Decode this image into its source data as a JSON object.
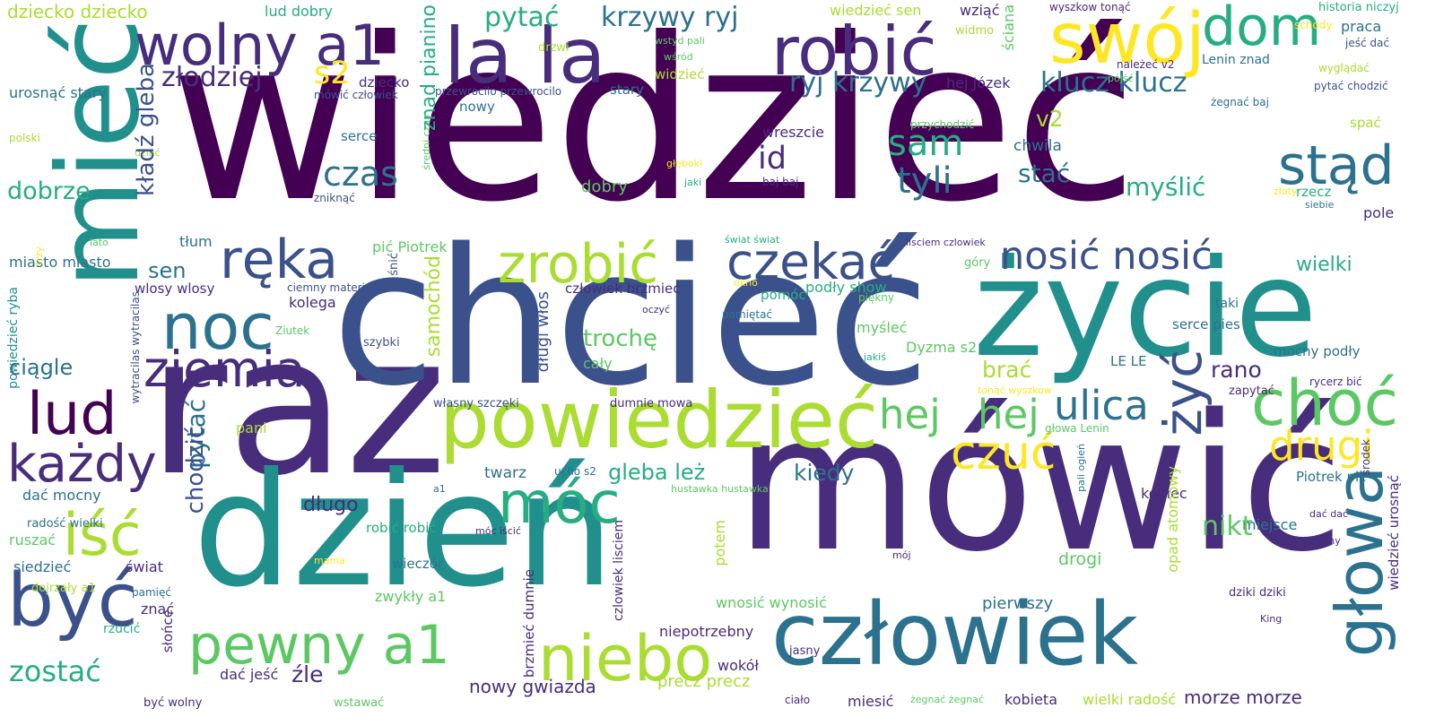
{
  "palette": {
    "background": "#ffffff",
    "viridis": [
      "#440154",
      "#472d7b",
      "#3b518b",
      "#2c718e",
      "#21908d",
      "#27ad81",
      "#5cc863",
      "#aadc32",
      "#fde725"
    ]
  },
  "words": [
    {
      "id": "wiedziec",
      "text": "wiedzieć",
      "color": "#440154"
    },
    {
      "id": "raz",
      "text": "raz",
      "color": "#472d7b"
    },
    {
      "id": "chciec",
      "text": "chcieć",
      "color": "#3b518b"
    },
    {
      "id": "mowic",
      "text": "mówić",
      "color": "#472d7b"
    },
    {
      "id": "dzien",
      "text": "dzień",
      "color": "#21908d"
    },
    {
      "id": "zycie",
      "text": "życie",
      "color": "#21908d"
    },
    {
      "id": "miec",
      "text": "mieć",
      "color": "#21908d"
    },
    {
      "id": "czlowiek",
      "text": "człowiek",
      "color": "#2c718e"
    },
    {
      "id": "powiedziec",
      "text": "powiedzieć",
      "color": "#aadc32"
    },
    {
      "id": "la-la",
      "text": "la la",
      "color": "#472d7b"
    },
    {
      "id": "wolny-a1",
      "text": "wolny a1",
      "color": "#472d7b"
    },
    {
      "id": "robic",
      "text": "robić",
      "color": "#472d7b"
    },
    {
      "id": "swoj",
      "text": "swój",
      "color": "#fde725"
    },
    {
      "id": "dom",
      "text": "dom",
      "color": "#27ad81"
    },
    {
      "id": "stad",
      "text": "stąd",
      "color": "#2c718e"
    },
    {
      "id": "reka",
      "text": "ręka",
      "color": "#3b518b"
    },
    {
      "id": "noc",
      "text": "noc",
      "color": "#2c718e"
    },
    {
      "id": "ziemia",
      "text": "ziemia",
      "color": "#472d7b"
    },
    {
      "id": "zrobic",
      "text": "zrobić",
      "color": "#aadc32"
    },
    {
      "id": "czekac",
      "text": "czekać",
      "color": "#3b518b"
    },
    {
      "id": "nosic-nosic",
      "text": "nosić nosić",
      "color": "#3b518b"
    },
    {
      "id": "byc",
      "text": "być",
      "color": "#3b518b"
    },
    {
      "id": "isc",
      "text": "iść",
      "color": "#aadc32"
    },
    {
      "id": "moc",
      "text": "móc",
      "color": "#27ad81"
    },
    {
      "id": "niebo",
      "text": "niebo",
      "color": "#aadc32"
    },
    {
      "id": "pewny-a1",
      "text": "pewny a1",
      "color": "#5cc863"
    },
    {
      "id": "kazdy",
      "text": "każdy",
      "color": "#472d7b"
    },
    {
      "id": "lud",
      "text": "lud",
      "color": "#440154"
    },
    {
      "id": "glowa",
      "text": "głowa",
      "color": "#2c718e"
    },
    {
      "id": "choc",
      "text": "choć",
      "color": "#5cc863"
    },
    {
      "id": "zyc",
      "text": "żyć",
      "color": "#3b518b"
    },
    {
      "id": "czuc",
      "text": "czuć",
      "color": "#fde725"
    },
    {
      "id": "hej-1",
      "text": "hej",
      "color": "#5cc863"
    },
    {
      "id": "hej-2",
      "text": "hej",
      "color": "#5cc863"
    },
    {
      "id": "ulica",
      "text": "ulica",
      "color": "#2c718e"
    },
    {
      "id": "drugi",
      "text": "drugi",
      "color": "#fde725"
    },
    {
      "id": "sam",
      "text": "sam",
      "color": "#27ad81"
    },
    {
      "id": "tyli",
      "text": "tyli",
      "color": "#2c718e"
    },
    {
      "id": "czas",
      "text": "czas",
      "color": "#2c718e"
    },
    {
      "id": "id",
      "text": "id",
      "color": "#472d7b"
    },
    {
      "id": "s2",
      "text": "s2",
      "color": "#fde725"
    },
    {
      "id": "pytac-top",
      "text": "pytać",
      "color": "#27ad81"
    },
    {
      "id": "krzywy-ryj",
      "text": "krzywy ryj",
      "color": "#2c718e"
    },
    {
      "id": "ryj-krzywy",
      "text": "ryj krzywy",
      "color": "#2c718e"
    },
    {
      "id": "klucz-klucz",
      "text": "klucz klucz",
      "color": "#2c718e"
    },
    {
      "id": "v2",
      "text": "v2",
      "color": "#aadc32"
    },
    {
      "id": "stac",
      "text": "stać",
      "color": "#2c718e"
    },
    {
      "id": "myslic",
      "text": "myślić",
      "color": "#27ad81"
    },
    {
      "id": "zlodziej",
      "text": "złodziej",
      "color": "#472d7b"
    },
    {
      "id": "dziecko-dziecko",
      "text": "dziecko dziecko",
      "color": "#aadc32"
    },
    {
      "id": "wiedziec-sen",
      "text": "wiedzieć sen",
      "color": "#aadc32"
    },
    {
      "id": "wziac",
      "text": "wziąć",
      "color": "#472d7b"
    },
    {
      "id": "sciana",
      "text": "ściana",
      "color": "#5cc863"
    },
    {
      "id": "wyszkow-tonac",
      "text": "wyszkow tonąć",
      "color": "#472d7b"
    },
    {
      "id": "historia-niczyj",
      "text": "historia niczyj",
      "color": "#27ad81"
    },
    {
      "id": "schody",
      "text": "schody",
      "color": "#fde725"
    },
    {
      "id": "praca",
      "text": "praca",
      "color": "#2c718e"
    },
    {
      "id": "jesc-dac",
      "text": "jeść dać",
      "color": "#3b518b"
    },
    {
      "id": "wygladac",
      "text": "wyglądać",
      "color": "#aadc32"
    },
    {
      "id": "pytac-chodzic",
      "text": "pytać chodzić",
      "color": "#3b518b"
    },
    {
      "id": "lenin-znad",
      "text": "Lenin znad",
      "color": "#2c718e"
    },
    {
      "id": "nalezec-v2",
      "text": "należeć v2",
      "color": "#472d7b"
    },
    {
      "id": "pojsc",
      "text": "pójść",
      "color": "#5cc863"
    },
    {
      "id": "zegnac-baj",
      "text": "żegnać baj",
      "color": "#2c718e"
    },
    {
      "id": "spac",
      "text": "spać",
      "color": "#aadc32"
    },
    {
      "id": "lud-dobry",
      "text": "lud dobry",
      "color": "#27ad81"
    },
    {
      "id": "drzwi",
      "text": "drzwi",
      "color": "#aadc32"
    },
    {
      "id": "wstyd-pali",
      "text": "wstyd pali",
      "color": "#5cc863"
    },
    {
      "id": "wsrod",
      "text": "wśród",
      "color": "#5cc863"
    },
    {
      "id": "widmo",
      "text": "widmo",
      "color": "#aadc32"
    },
    {
      "id": "hej-jozek",
      "text": "hej Józek",
      "color": "#472d7b"
    },
    {
      "id": "widziec",
      "text": "widzieć",
      "color": "#aadc32"
    },
    {
      "id": "stary",
      "text": "stary",
      "color": "#2c718e"
    },
    {
      "id": "przewrocilo",
      "text": "przewrocilo przewrocilo",
      "color": "#3b518b"
    },
    {
      "id": "dziecko",
      "text": "dziecko",
      "color": "#472d7b"
    },
    {
      "id": "mowic-czlowiek",
      "text": "mówić człowiek",
      "color": "#3b518b"
    },
    {
      "id": "nowy",
      "text": "nowy",
      "color": "#2c718e"
    },
    {
      "id": "urosnac-stary",
      "text": "urosnąć stary",
      "color": "#2c718e"
    },
    {
      "id": "polski",
      "text": "polski",
      "color": "#aadc32"
    },
    {
      "id": "dziac",
      "text": "dziać",
      "color": "#aadc32"
    },
    {
      "id": "serce",
      "text": "serce",
      "color": "#2c718e"
    },
    {
      "id": "sredni-czas",
      "text": "średni czas",
      "color": "#5cc863"
    },
    {
      "id": "znad-pianino",
      "text": "znad pianino",
      "color": "#27ad81"
    },
    {
      "id": "kladz-gleba",
      "text": "kładź gleba",
      "color": "#3b518b"
    },
    {
      "id": "przychodzic",
      "text": "przychodzić",
      "color": "#5cc863"
    },
    {
      "id": "wreszcie",
      "text": "wreszcie",
      "color": "#472d7b"
    },
    {
      "id": "chwila",
      "text": "chwila",
      "color": "#2c718e"
    },
    {
      "id": "gleboki",
      "text": "głęboki",
      "color": "#fde725"
    },
    {
      "id": "jaki",
      "text": "jaki",
      "color": "#27ad81"
    },
    {
      "id": "baj-baj",
      "text": "baj baj",
      "color": "#472d7b"
    },
    {
      "id": "zloty",
      "text": "złoty",
      "color": "#fde725"
    },
    {
      "id": "rzecz",
      "text": "rzecz",
      "color": "#27ad81"
    },
    {
      "id": "siebie",
      "text": "siebie",
      "color": "#2c718e"
    },
    {
      "id": "pole",
      "text": "pole",
      "color": "#472d7b"
    },
    {
      "id": "dobrze",
      "text": "dobrze",
      "color": "#27ad81"
    },
    {
      "id": "zniknac",
      "text": "zniknąć",
      "color": "#3b518b"
    },
    {
      "id": "dobry",
      "text": "dobry",
      "color": "#5cc863"
    },
    {
      "id": "lato",
      "text": "lato",
      "color": "#5cc863"
    },
    {
      "id": "tlum",
      "text": "tłum",
      "color": "#2c718e"
    },
    {
      "id": "swiat-swiat",
      "text": "świat świat",
      "color": "#27ad81"
    },
    {
      "id": "lisciem-czlowiek",
      "text": "lisciem czlowiek",
      "color": "#472d7b"
    },
    {
      "id": "gory",
      "text": "góry",
      "color": "#5cc863"
    },
    {
      "id": "miasto-miasto",
      "text": "miasto miasto",
      "color": "#2c718e"
    },
    {
      "id": "sen",
      "text": "sen",
      "color": "#2c718e"
    },
    {
      "id": "snic",
      "text": "śnić",
      "color": "#3b518b"
    },
    {
      "id": "pic-piotrek",
      "text": "pić Piotrek",
      "color": "#5cc863"
    },
    {
      "id": "wielki",
      "text": "wielki",
      "color": "#27ad81"
    },
    {
      "id": "trzy",
      "text": "trzy",
      "color": "#fde725"
    },
    {
      "id": "wlosy-wlosy",
      "text": "wlosy wlosy",
      "color": "#472d7b"
    },
    {
      "id": "ciemny-materia",
      "text": "ciemny materia",
      "color": "#3b518b"
    },
    {
      "id": "samochod",
      "text": "samochód",
      "color": "#aadc32"
    },
    {
      "id": "czlowiek-brzmiec",
      "text": "człowiek brzmieć",
      "color": "#472d7b"
    },
    {
      "id": "okno",
      "text": "okno",
      "color": "#fde725"
    },
    {
      "id": "pomoc",
      "text": "pomóc",
      "color": "#27ad81"
    },
    {
      "id": "podly-show",
      "text": "podły show",
      "color": "#27ad81"
    },
    {
      "id": "piekny",
      "text": "piękny",
      "color": "#5cc863"
    },
    {
      "id": "powiedziec-ryba",
      "text": "powiedzieć ryba",
      "color": "#21908d"
    },
    {
      "id": "wytracilas",
      "text": "wytracilas wytracilas",
      "color": "#3b518b"
    },
    {
      "id": "kolega",
      "text": "kolega",
      "color": "#472d7b"
    },
    {
      "id": "oczyc",
      "text": "oczyć",
      "color": "#472d7b"
    },
    {
      "id": "pamietac",
      "text": "pamiętać",
      "color": "#2c718e"
    },
    {
      "id": "taki",
      "text": "taki",
      "color": "#2c718e"
    },
    {
      "id": "ziutek",
      "text": "Ziutek",
      "color": "#5cc863"
    },
    {
      "id": "myslec",
      "text": "myśleć",
      "color": "#5cc863"
    },
    {
      "id": "serce-pies",
      "text": "serce pies",
      "color": "#2c718e"
    },
    {
      "id": "ciagle",
      "text": "ciągle",
      "color": "#2c718e"
    },
    {
      "id": "szybki",
      "text": "szybki",
      "color": "#3b518b"
    },
    {
      "id": "trochę",
      "text": "trochę",
      "color": "#5cc863"
    },
    {
      "id": "caly",
      "text": "cały",
      "color": "#5cc863"
    },
    {
      "id": "dlugi-wlos",
      "text": "długi włos",
      "color": "#3b518b"
    },
    {
      "id": "rano",
      "text": "rano",
      "color": "#472d7b"
    },
    {
      "id": "mocny-podly",
      "text": "mocny podły",
      "color": "#2c718e"
    },
    {
      "id": "jakis",
      "text": "jakiś",
      "color": "#27ad81"
    },
    {
      "id": "dyzma-s2",
      "text": "Dyzma s2",
      "color": "#5cc863"
    },
    {
      "id": "brac",
      "text": "brać",
      "color": "#aadc32"
    },
    {
      "id": "le-le",
      "text": "LE LE",
      "color": "#2c718e"
    },
    {
      "id": "rycerz-bic",
      "text": "rycerz bić",
      "color": "#472d7b"
    },
    {
      "id": "zapytac",
      "text": "zapytać",
      "color": "#472d7b"
    },
    {
      "id": "tonac-wyszkow",
      "text": "tonąć wyszkow",
      "color": "#fde725"
    },
    {
      "id": "wlasny-szczeki",
      "text": "własny szczęki",
      "color": "#3b518b"
    },
    {
      "id": "dumnie-mowa",
      "text": "dumnie mowa",
      "color": "#472d7b"
    },
    {
      "id": "pani",
      "text": "pani",
      "color": "#aadc32"
    },
    {
      "id": "glowa-lenin",
      "text": "głowa Lenin",
      "color": "#5cc863"
    },
    {
      "id": "pytac-vert",
      "text": "pytać",
      "color": "#2c718e"
    },
    {
      "id": "gleba-lez",
      "text": "gleba leż",
      "color": "#27ad81"
    },
    {
      "id": "kiedy",
      "text": "kiedy",
      "color": "#2c718e"
    },
    {
      "id": "srodek",
      "text": "środek",
      "color": "#472d7b"
    },
    {
      "id": "pali-ogien",
      "text": "pali ogień",
      "color": "#2c718e"
    },
    {
      "id": "ucho-s2",
      "text": "ucho s2",
      "color": "#2c718e"
    },
    {
      "id": "twarz",
      "text": "twarz",
      "color": "#2c718e"
    },
    {
      "id": "a1",
      "text": "a1",
      "color": "#2c718e"
    },
    {
      "id": "piotrek-pic",
      "text": "Piotrek pić",
      "color": "#2c718e"
    },
    {
      "id": "wiedziec-urosnac",
      "text": "wiedzieć urosnąć",
      "color": "#472d7b"
    },
    {
      "id": "dac-mocny",
      "text": "dać mocny",
      "color": "#2c718e"
    },
    {
      "id": "dlugo",
      "text": "długo",
      "color": "#472d7b"
    },
    {
      "id": "chodzic",
      "text": "chodzić",
      "color": "#3b518b"
    },
    {
      "id": "hustawka",
      "text": "hustawka hustawka",
      "color": "#5cc863"
    },
    {
      "id": "koniec",
      "text": "koniec",
      "color": "#472d7b"
    },
    {
      "id": "dac-dac",
      "text": "dać dać",
      "color": "#472d7b"
    },
    {
      "id": "radosc-wielki",
      "text": "radość wielki",
      "color": "#2c718e"
    },
    {
      "id": "robic-robic",
      "text": "robić robić",
      "color": "#27ad81"
    },
    {
      "id": "miejsce",
      "text": "miejsce",
      "color": "#2c718e"
    },
    {
      "id": "nikt",
      "text": "nikt",
      "color": "#5cc863"
    },
    {
      "id": "rany",
      "text": "rany",
      "color": "#472d7b"
    },
    {
      "id": "ruszac",
      "text": "ruszać",
      "color": "#5cc863"
    },
    {
      "id": "moc-iscic",
      "text": "móc iścić",
      "color": "#472d7b"
    },
    {
      "id": "opad-atomowy",
      "text": "opad atomowy",
      "color": "#aadc32"
    },
    {
      "id": "mama",
      "text": "mama",
      "color": "#fde725"
    },
    {
      "id": "siedziec",
      "text": "siedzieć",
      "color": "#2c718e"
    },
    {
      "id": "swiat",
      "text": "świat",
      "color": "#472d7b"
    },
    {
      "id": "wieczor",
      "text": "wieczór",
      "color": "#2c718e"
    },
    {
      "id": "drogi",
      "text": "drogi",
      "color": "#5cc863"
    },
    {
      "id": "moj",
      "text": "mój",
      "color": "#472d7b"
    },
    {
      "id": "dojrzaly-a1",
      "text": "dojrzały a1",
      "color": "#aadc32"
    },
    {
      "id": "pamiec",
      "text": "pamięć",
      "color": "#2c718e"
    },
    {
      "id": "czlowiek-lisciem",
      "text": "czlowiek lisciem",
      "color": "#472d7b"
    },
    {
      "id": "potem",
      "text": "potem",
      "color": "#aadc32"
    },
    {
      "id": "zwykly-a1",
      "text": "zwykły a1",
      "color": "#5cc863"
    },
    {
      "id": "znac",
      "text": "znać",
      "color": "#472d7b"
    },
    {
      "id": "wnosic-wynosic",
      "text": "wnosić wynosić",
      "color": "#5cc863"
    },
    {
      "id": "pierwszy",
      "text": "pierwszy",
      "color": "#2c718e"
    },
    {
      "id": "dziki-dziki",
      "text": "dziki dziki",
      "color": "#472d7b"
    },
    {
      "id": "brzmiec-dumnie",
      "text": "brzmieć dumnie",
      "color": "#472d7b"
    },
    {
      "id": "king",
      "text": "King",
      "color": "#472d7b"
    },
    {
      "id": "niepotrzebny",
      "text": "niepotrzebny",
      "color": "#472d7b"
    },
    {
      "id": "rzucic",
      "text": "rzucić",
      "color": "#27ad81"
    },
    {
      "id": "slonce",
      "text": "słońce",
      "color": "#472d7b"
    },
    {
      "id": "jasny",
      "text": "jasny",
      "color": "#472d7b"
    },
    {
      "id": "zostac",
      "text": "zostać",
      "color": "#27ad81"
    },
    {
      "id": "dac-jesc",
      "text": "dać jeść",
      "color": "#472d7b"
    },
    {
      "id": "zle",
      "text": "źle",
      "color": "#472d7b"
    },
    {
      "id": "nowy-gwiazda",
      "text": "nowy gwiazda",
      "color": "#472d7b"
    },
    {
      "id": "wokol",
      "text": "wokół",
      "color": "#472d7b"
    },
    {
      "id": "precz-precz",
      "text": "precz precz",
      "color": "#aadc32"
    },
    {
      "id": "cialo",
      "text": "ciało",
      "color": "#472d7b"
    },
    {
      "id": "miesic",
      "text": "miesić",
      "color": "#472d7b"
    },
    {
      "id": "zegnac-zegnac",
      "text": "żegnać żegnać",
      "color": "#5cc863"
    },
    {
      "id": "kobieta",
      "text": "kobieta",
      "color": "#472d7b"
    },
    {
      "id": "wielki-radosc",
      "text": "wielki radość",
      "color": "#aadc32"
    },
    {
      "id": "morze-morze",
      "text": "morze morze",
      "color": "#472d7b"
    },
    {
      "id": "byc-wolny",
      "text": "być wolny",
      "color": "#472d7b"
    },
    {
      "id": "wstawac",
      "text": "wstawać",
      "color": "#5cc863"
    }
  ]
}
